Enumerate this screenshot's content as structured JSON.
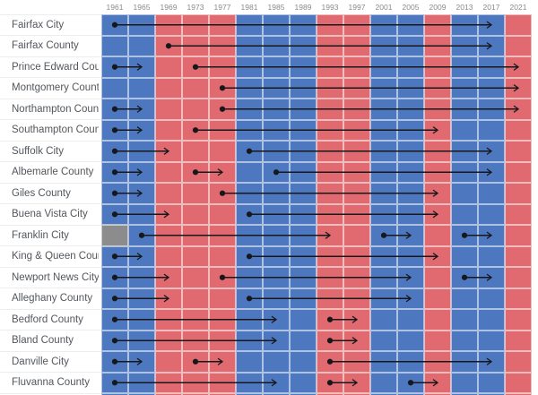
{
  "chart_data": {
    "type": "heatmap",
    "title": "",
    "years": [
      "1961",
      "1965",
      "1969",
      "1973",
      "1977",
      "1981",
      "1985",
      "1989",
      "1993",
      "1997",
      "2001",
      "2005",
      "2009",
      "2013",
      "2017",
      "2021"
    ],
    "party_colors": {
      "D": "#4d78c0",
      "R": "#e06a6f",
      "N": "#8c8c8c"
    },
    "statewide_winner_by_year": [
      "D",
      "D",
      "R",
      "R",
      "R",
      "D",
      "D",
      "D",
      "R",
      "R",
      "D",
      "D",
      "R",
      "D",
      "D",
      "R"
    ],
    "marker_color": "#17181b",
    "legend": "none",
    "rows": [
      {
        "label": "Fairfax City",
        "cells": [
          "D",
          "D",
          "R",
          "R",
          "R",
          "D",
          "D",
          "D",
          "R",
          "R",
          "D",
          "D",
          "R",
          "D",
          "D",
          "R"
        ],
        "streaks": [
          {
            "start": "1961",
            "end": "2017"
          }
        ]
      },
      {
        "label": "Fairfax County",
        "cells": [
          "D",
          "D",
          "R",
          "R",
          "R",
          "D",
          "D",
          "D",
          "R",
          "R",
          "D",
          "D",
          "R",
          "D",
          "D",
          "R"
        ],
        "streaks": [
          {
            "start": "1969",
            "end": "2017"
          }
        ]
      },
      {
        "label": "Prince Edward County",
        "cells": [
          "D",
          "D",
          "R",
          "R",
          "R",
          "D",
          "D",
          "D",
          "R",
          "R",
          "D",
          "D",
          "R",
          "D",
          "D",
          "R"
        ],
        "streaks": [
          {
            "start": "1961",
            "end": "1965"
          },
          {
            "start": "1973",
            "end": "2021"
          }
        ]
      },
      {
        "label": "Montgomery County",
        "cells": [
          "D",
          "D",
          "R",
          "R",
          "R",
          "D",
          "D",
          "D",
          "R",
          "R",
          "D",
          "D",
          "R",
          "D",
          "D",
          "R"
        ],
        "streaks": [
          {
            "start": "1977",
            "end": "2021"
          }
        ]
      },
      {
        "label": "Northampton County",
        "cells": [
          "D",
          "D",
          "R",
          "R",
          "R",
          "D",
          "D",
          "D",
          "R",
          "R",
          "D",
          "D",
          "R",
          "D",
          "D",
          "R"
        ],
        "streaks": [
          {
            "start": "1961",
            "end": "1965"
          },
          {
            "start": "1977",
            "end": "2021"
          }
        ]
      },
      {
        "label": "Southampton County",
        "cells": [
          "D",
          "D",
          "R",
          "R",
          "R",
          "D",
          "D",
          "D",
          "R",
          "R",
          "D",
          "D",
          "R",
          "D",
          "D",
          "R"
        ],
        "streaks": [
          {
            "start": "1961",
            "end": "1965"
          },
          {
            "start": "1973",
            "end": "2009"
          }
        ]
      },
      {
        "label": "Suffolk City",
        "cells": [
          "D",
          "D",
          "R",
          "R",
          "R",
          "D",
          "D",
          "D",
          "R",
          "R",
          "D",
          "D",
          "R",
          "D",
          "D",
          "R"
        ],
        "streaks": [
          {
            "start": "1961",
            "end": "1969"
          },
          {
            "start": "1981",
            "end": "2017"
          }
        ]
      },
      {
        "label": "Albemarle County",
        "cells": [
          "D",
          "D",
          "R",
          "R",
          "R",
          "D",
          "D",
          "D",
          "R",
          "R",
          "D",
          "D",
          "R",
          "D",
          "D",
          "R"
        ],
        "streaks": [
          {
            "start": "1961",
            "end": "1965"
          },
          {
            "start": "1973",
            "end": "1977"
          },
          {
            "start": "1985",
            "end": "2017"
          }
        ]
      },
      {
        "label": "Giles County",
        "cells": [
          "D",
          "D",
          "R",
          "R",
          "R",
          "D",
          "D",
          "D",
          "R",
          "R",
          "D",
          "D",
          "R",
          "D",
          "D",
          "R"
        ],
        "streaks": [
          {
            "start": "1961",
            "end": "1965"
          },
          {
            "start": "1977",
            "end": "2009"
          }
        ]
      },
      {
        "label": "Buena Vista City",
        "cells": [
          "D",
          "D",
          "R",
          "R",
          "R",
          "D",
          "D",
          "D",
          "R",
          "R",
          "D",
          "D",
          "R",
          "D",
          "D",
          "R"
        ],
        "streaks": [
          {
            "start": "1961",
            "end": "1969"
          },
          {
            "start": "1981",
            "end": "2009"
          }
        ]
      },
      {
        "label": "Franklin City",
        "cells": [
          "N",
          "D",
          "R",
          "R",
          "R",
          "D",
          "D",
          "D",
          "R",
          "R",
          "D",
          "D",
          "R",
          "D",
          "D",
          "R"
        ],
        "streaks": [
          {
            "start": "1965",
            "end": "1993"
          },
          {
            "start": "2001",
            "end": "2005"
          },
          {
            "start": "2013",
            "end": "2017"
          }
        ]
      },
      {
        "label": "King & Queen County",
        "cells": [
          "D",
          "D",
          "R",
          "R",
          "R",
          "D",
          "D",
          "D",
          "R",
          "R",
          "D",
          "D",
          "R",
          "D",
          "D",
          "R"
        ],
        "streaks": [
          {
            "start": "1961",
            "end": "1965"
          },
          {
            "start": "1981",
            "end": "2009"
          }
        ]
      },
      {
        "label": "Newport News City",
        "cells": [
          "D",
          "D",
          "R",
          "R",
          "R",
          "D",
          "D",
          "D",
          "R",
          "R",
          "D",
          "D",
          "R",
          "D",
          "D",
          "R"
        ],
        "streaks": [
          {
            "start": "1961",
            "end": "1969"
          },
          {
            "start": "1977",
            "end": "2005"
          },
          {
            "start": "2013",
            "end": "2017"
          }
        ]
      },
      {
        "label": "Alleghany County",
        "cells": [
          "D",
          "D",
          "R",
          "R",
          "R",
          "D",
          "D",
          "D",
          "R",
          "R",
          "D",
          "D",
          "R",
          "D",
          "D",
          "R"
        ],
        "streaks": [
          {
            "start": "1961",
            "end": "1969"
          },
          {
            "start": "1981",
            "end": "2005"
          }
        ]
      },
      {
        "label": "Bedford County",
        "cells": [
          "D",
          "D",
          "R",
          "R",
          "R",
          "D",
          "D",
          "D",
          "R",
          "R",
          "D",
          "D",
          "R",
          "D",
          "D",
          "R"
        ],
        "streaks": [
          {
            "start": "1961",
            "end": "1985"
          },
          {
            "start": "1993",
            "end": "1997"
          }
        ]
      },
      {
        "label": "Bland County",
        "cells": [
          "D",
          "D",
          "R",
          "R",
          "R",
          "D",
          "D",
          "D",
          "R",
          "R",
          "D",
          "D",
          "R",
          "D",
          "D",
          "R"
        ],
        "streaks": [
          {
            "start": "1961",
            "end": "1985"
          },
          {
            "start": "1993",
            "end": "1997"
          }
        ]
      },
      {
        "label": "Danville City",
        "cells": [
          "D",
          "D",
          "R",
          "R",
          "R",
          "D",
          "D",
          "D",
          "R",
          "R",
          "D",
          "D",
          "R",
          "D",
          "D",
          "R"
        ],
        "streaks": [
          {
            "start": "1961",
            "end": "1965"
          },
          {
            "start": "1973",
            "end": "1977"
          },
          {
            "start": "1993",
            "end": "2017"
          }
        ]
      },
      {
        "label": "Fluvanna County",
        "cells": [
          "D",
          "D",
          "R",
          "R",
          "R",
          "D",
          "D",
          "D",
          "R",
          "R",
          "D",
          "D",
          "R",
          "D",
          "D",
          "R"
        ],
        "streaks": [
          {
            "start": "1961",
            "end": "1985"
          },
          {
            "start": "1993",
            "end": "1997"
          },
          {
            "start": "2005",
            "end": "2009"
          }
        ]
      },
      {
        "label": "",
        "partial": true,
        "cells": [
          "D",
          "D",
          "R",
          "R",
          "R",
          "D",
          "D",
          "D",
          "R",
          "R",
          "D",
          "D",
          "R",
          "D",
          "D",
          "R"
        ],
        "streaks": []
      }
    ]
  }
}
